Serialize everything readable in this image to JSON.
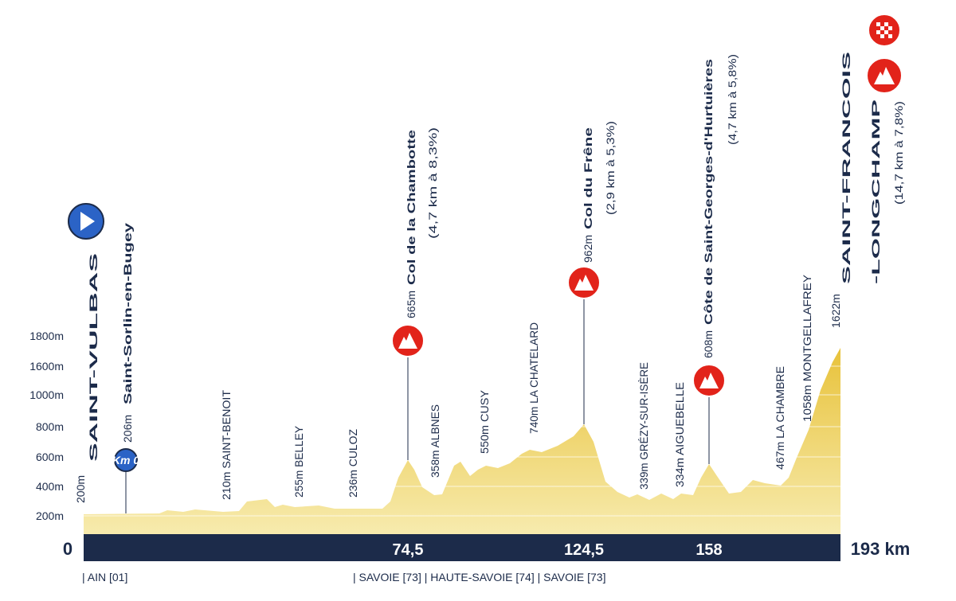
{
  "axis": {
    "elevation_labels": [
      "1800m",
      "1600m",
      "1000m",
      "800m",
      "600m",
      "400m",
      "200m"
    ],
    "km_markers": [
      "0",
      "74,5",
      "124,5",
      "158",
      "193 km"
    ],
    "regions": {
      "start": "| AIN [01]",
      "end": "| SAVOIE [73] | HAUTE-SAVOIE [74] | SAVOIE [73]"
    }
  },
  "start": {
    "altitude": "200m",
    "name": "SAINT-VULBAS",
    "km0_altitude": "206m",
    "km0_name": "Saint-Sorlin-en-Bugey",
    "km0_badge": "Km 0"
  },
  "towns": [
    {
      "label": "210m SAINT-BENOIT"
    },
    {
      "label": "255m BELLEY"
    },
    {
      "label": "236m CULOZ"
    },
    {
      "label": "358m ALBNES"
    },
    {
      "label": "550m CUSY"
    },
    {
      "label": "740m LA CHATELARD"
    },
    {
      "label": "339m GRÉZY-SUR-ISÈRE"
    },
    {
      "label": "334m AIGUEBELLE"
    },
    {
      "label": "467m LA CHAMBRE"
    },
    {
      "label": "1058m MONTGELLAFREY"
    }
  ],
  "climbs": [
    {
      "altitude": "665m",
      "name": "Col de la Chambotte",
      "detail": "(4,7 km à 8,3%)"
    },
    {
      "altitude": "962m",
      "name": "Col du Frêne",
      "detail": "(2,9 km à 5,3%)"
    },
    {
      "altitude": "608m",
      "name": "Côte de Saint-Georges-d'Hurtuières",
      "detail": "(4,7 km à 5,8%)"
    }
  ],
  "finish": {
    "altitude": "1622m",
    "name_line1": "SAINT-FRANCOIS",
    "name_line2": "-LONGCHAMP",
    "detail": "(14,7 km à 7,8%)"
  }
}
